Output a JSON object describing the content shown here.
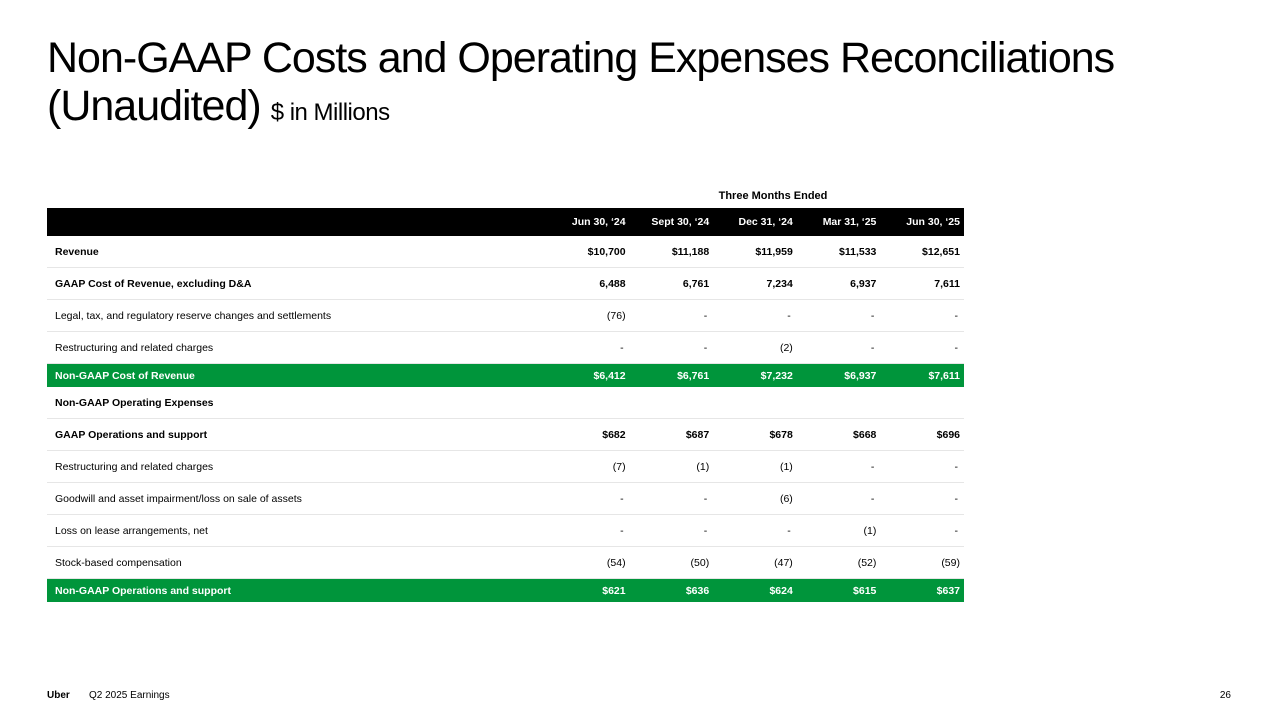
{
  "title": {
    "main": "Non-GAAP Costs and Operating Expenses Reconciliations (Unaudited)",
    "unit": "$ in Millions"
  },
  "table": {
    "group_header": "Three Months Ended",
    "columns": [
      "",
      "Jun 30, ‘24",
      "Sept 30, ‘24",
      "Dec 31, ‘24",
      "Mar 31, ‘25",
      "Jun 30, ‘25"
    ],
    "rows": [
      {
        "label": "Revenue",
        "values": [
          "$10,700",
          "$11,188",
          "$11,959",
          "$11,533",
          "$12,651"
        ],
        "style": "bold"
      },
      {
        "label": "GAAP Cost of Revenue, excluding D&A",
        "values": [
          "6,488",
          "6,761",
          "7,234",
          "6,937",
          "7,611"
        ],
        "style": "bold"
      },
      {
        "label": "Legal, tax, and regulatory reserve changes and settlements",
        "values": [
          "(76)",
          "-",
          "-",
          "-",
          "-"
        ],
        "style": "normal"
      },
      {
        "label": "Restructuring and related charges",
        "values": [
          "-",
          "-",
          "(2)",
          "-",
          "-"
        ],
        "style": "normal"
      },
      {
        "label": "Non-GAAP Cost of Revenue",
        "values": [
          "$6,412",
          "$6,761",
          "$7,232",
          "$6,937",
          "$7,611"
        ],
        "style": "highlight"
      },
      {
        "label": "Non-GAAP Operating Expenses",
        "values": [
          "",
          "",
          "",
          "",
          ""
        ],
        "style": "section"
      },
      {
        "label": "GAAP Operations and support",
        "values": [
          "$682",
          "$687",
          "$678",
          "$668",
          "$696"
        ],
        "style": "bold"
      },
      {
        "label": "Restructuring and related charges",
        "values": [
          "(7)",
          "(1)",
          "(1)",
          "-",
          "-"
        ],
        "style": "normal"
      },
      {
        "label": "Goodwill and asset impairment/loss on sale of assets",
        "values": [
          "-",
          "-",
          "(6)",
          "-",
          "-"
        ],
        "style": "normal"
      },
      {
        "label": "Loss on lease arrangements, net",
        "values": [
          "-",
          "-",
          "-",
          "(1)",
          "-"
        ],
        "style": "normal"
      },
      {
        "label": "Stock-based compensation",
        "values": [
          "(54)",
          "(50)",
          "(47)",
          "(52)",
          "(59)"
        ],
        "style": "normal"
      },
      {
        "label": "Non-GAAP Operations and support",
        "values": [
          "$621",
          "$636",
          "$624",
          "$615",
          "$637"
        ],
        "style": "highlight"
      }
    ]
  },
  "footer": {
    "brand": "Uber",
    "report": "Q2 2025 Earnings",
    "page": "26"
  },
  "colors": {
    "highlight": "#00953b",
    "header_bg": "#000000"
  }
}
